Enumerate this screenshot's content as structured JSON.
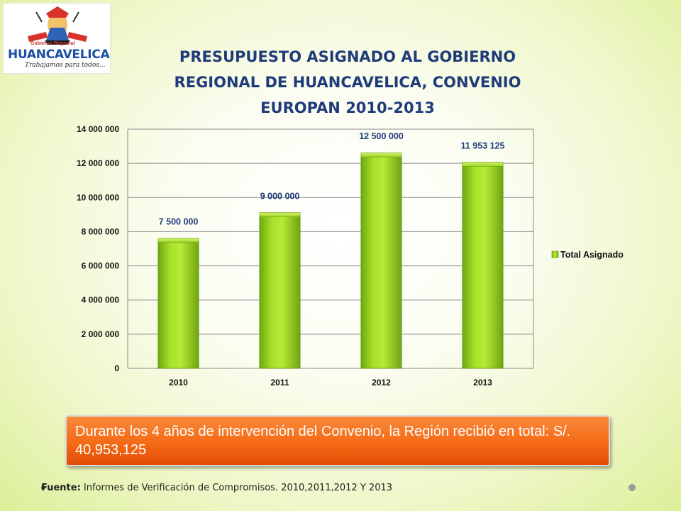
{
  "logo": {
    "top_text": "Gobierno Regional",
    "name": "HUANCAVELICA",
    "slogan": "Trabajamos para todos..."
  },
  "chart_data": {
    "type": "bar",
    "title_lines": [
      "PRESUPUESTO ASIGNADO AL GOBIERNO",
      "REGIONAL DE HUANCAVELICA, CONVENIO",
      "EUROPAN 2010-2013"
    ],
    "categories": [
      "2010",
      "2011",
      "2012",
      "2013"
    ],
    "series": [
      {
        "name": "Total Asignado",
        "values": [
          7500000,
          9000000,
          12500000,
          11953125
        ],
        "labels": [
          "7 500 000",
          "9 000 000",
          "12 500 000",
          "11 953 125"
        ]
      }
    ],
    "ylim": [
      0,
      14000000
    ],
    "yticks": [
      0,
      2000000,
      4000000,
      6000000,
      8000000,
      10000000,
      12000000,
      14000000
    ],
    "ytick_labels": [
      "0",
      "2 000 000",
      "4 000 000",
      "6 000 000",
      "8 000 000",
      "10 000 000",
      "12 000 000",
      "14 000 000"
    ],
    "grid": true,
    "legend": "right",
    "bar_color": "#8fcd1a"
  },
  "note": {
    "text": "Durante los 4 años de intervención del Convenio, la Región recibió en total: S/. 40,953,125"
  },
  "source": {
    "label": "Fuente:",
    "text": " Informes de Verificación de Compromisos. 2010,2011,2012 Y 2013"
  }
}
